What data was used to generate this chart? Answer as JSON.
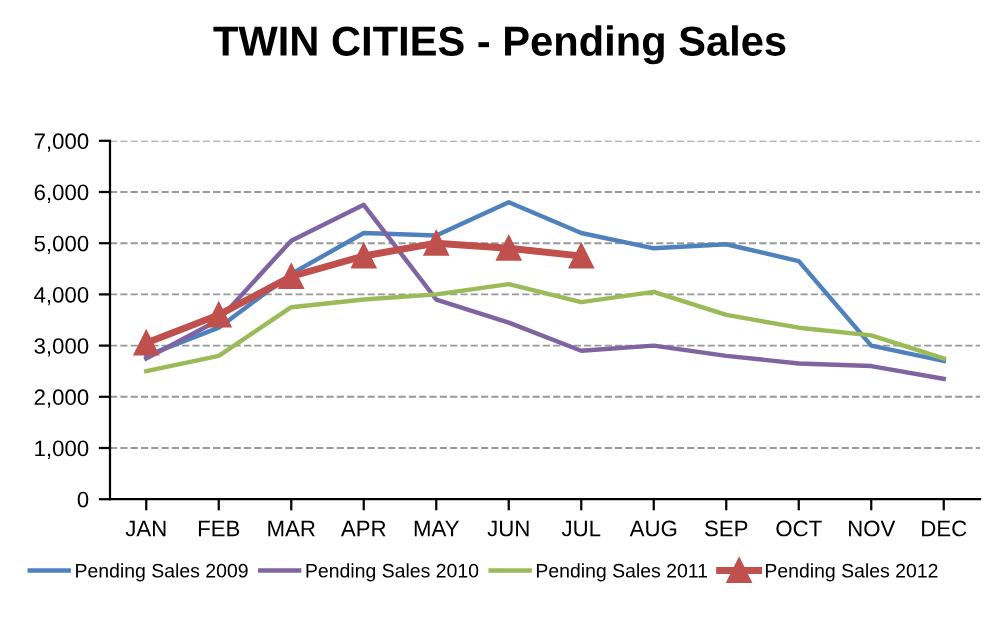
{
  "chart_data": {
    "type": "line",
    "title": "TWIN CITIES - Pending Sales",
    "categories": [
      "JAN",
      "FEB",
      "MAR",
      "APR",
      "MAY",
      "JUN",
      "JUL",
      "AUG",
      "SEP",
      "OCT",
      "NOV",
      "DEC"
    ],
    "series": [
      {
        "name": "Pending Sales 2009",
        "color": "#4f81bd",
        "values": [
          2800,
          3350,
          4400,
          5200,
          5150,
          5800,
          5200,
          4900,
          4980,
          4650,
          3000,
          2700
        ]
      },
      {
        "name": "Pending Sales 2010",
        "color": "#8064a2",
        "values": [
          2750,
          3500,
          5050,
          5750,
          3900,
          3450,
          2900,
          3000,
          2800,
          2650,
          2600,
          2350
        ]
      },
      {
        "name": "Pending Sales 2011",
        "color": "#9bbb59",
        "values": [
          2500,
          2800,
          3750,
          3900,
          4000,
          4200,
          3850,
          4050,
          3600,
          3350,
          3200,
          2750
        ]
      },
      {
        "name": "Pending Sales 2012",
        "color": "#c0504d",
        "marker": "triangle",
        "values": [
          3050,
          3600,
          4350,
          4750,
          5000,
          4900,
          4750,
          null,
          null,
          null,
          null,
          null
        ]
      }
    ],
    "ylim": [
      0,
      7000
    ],
    "yticks": [
      {
        "value": 0,
        "label": "0"
      },
      {
        "value": 1000,
        "label": "1,000"
      },
      {
        "value": 2000,
        "label": "2,000"
      },
      {
        "value": 3000,
        "label": "3,000"
      },
      {
        "value": 4000,
        "label": "4,000"
      },
      {
        "value": 5000,
        "label": "5,000"
      },
      {
        "value": 6000,
        "label": "6,000"
      },
      {
        "value": 7000,
        "label": "7,000"
      }
    ],
    "grid": "y",
    "legend": "bottom"
  }
}
